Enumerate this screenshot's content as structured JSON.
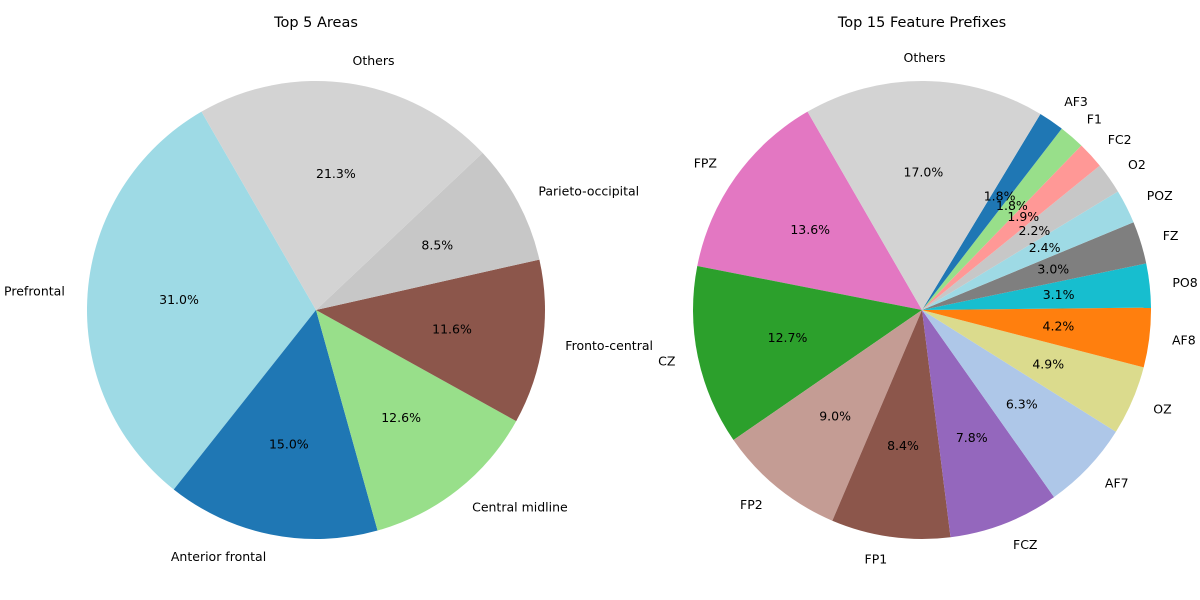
{
  "chart_data": [
    {
      "type": "pie",
      "title": "Top 5 Areas",
      "start_angle_deg": 120,
      "labels": [
        "Prefrontal",
        "Anterior frontal",
        "Central midline",
        "Fronto-central",
        "Parieto-occipital",
        "Others"
      ],
      "values": [
        31.0,
        15.0,
        12.6,
        11.6,
        8.5,
        21.3
      ],
      "percent_labels": [
        "31.0%",
        "15.0%",
        "12.6%",
        "11.6%",
        "8.5%",
        "21.3%"
      ],
      "colors": [
        "#9edae5",
        "#1f77b4",
        "#98df8a",
        "#8c564b",
        "#c7c7c7",
        "#d3d3d3"
      ]
    },
    {
      "type": "pie",
      "title": "Top 15 Feature Prefixes",
      "start_angle_deg": 120,
      "labels": [
        "FPZ",
        "CZ",
        "FP2",
        "FP1",
        "FCZ",
        "AF7",
        "OZ",
        "AF8",
        "PO8",
        "FZ",
        "POZ",
        "O2",
        "FC2",
        "F1",
        "AF3",
        "Others"
      ],
      "values": [
        13.6,
        12.7,
        9.0,
        8.4,
        7.8,
        6.3,
        4.9,
        4.2,
        3.1,
        3.0,
        2.4,
        2.2,
        1.9,
        1.8,
        1.8,
        17.0
      ],
      "percent_labels": [
        "13.6%",
        "12.7%",
        "9.0%",
        "8.4%",
        "7.8%",
        "6.3%",
        "4.9%",
        "4.2%",
        "3.1%",
        "3.0%",
        "2.4%",
        "2.2%",
        "1.9%",
        "1.8%",
        "1.8%",
        "17.0%"
      ],
      "colors": [
        "#e377c2",
        "#2ca02c",
        "#c49c94",
        "#8c564b",
        "#9467bd",
        "#aec7e8",
        "#dbdb8d",
        "#ff7f0e",
        "#17becf",
        "#7f7f7f",
        "#9edae5",
        "#c7c7c7",
        "#ff9896",
        "#98df8a",
        "#1f77b4",
        "#d3d3d3"
      ]
    }
  ]
}
